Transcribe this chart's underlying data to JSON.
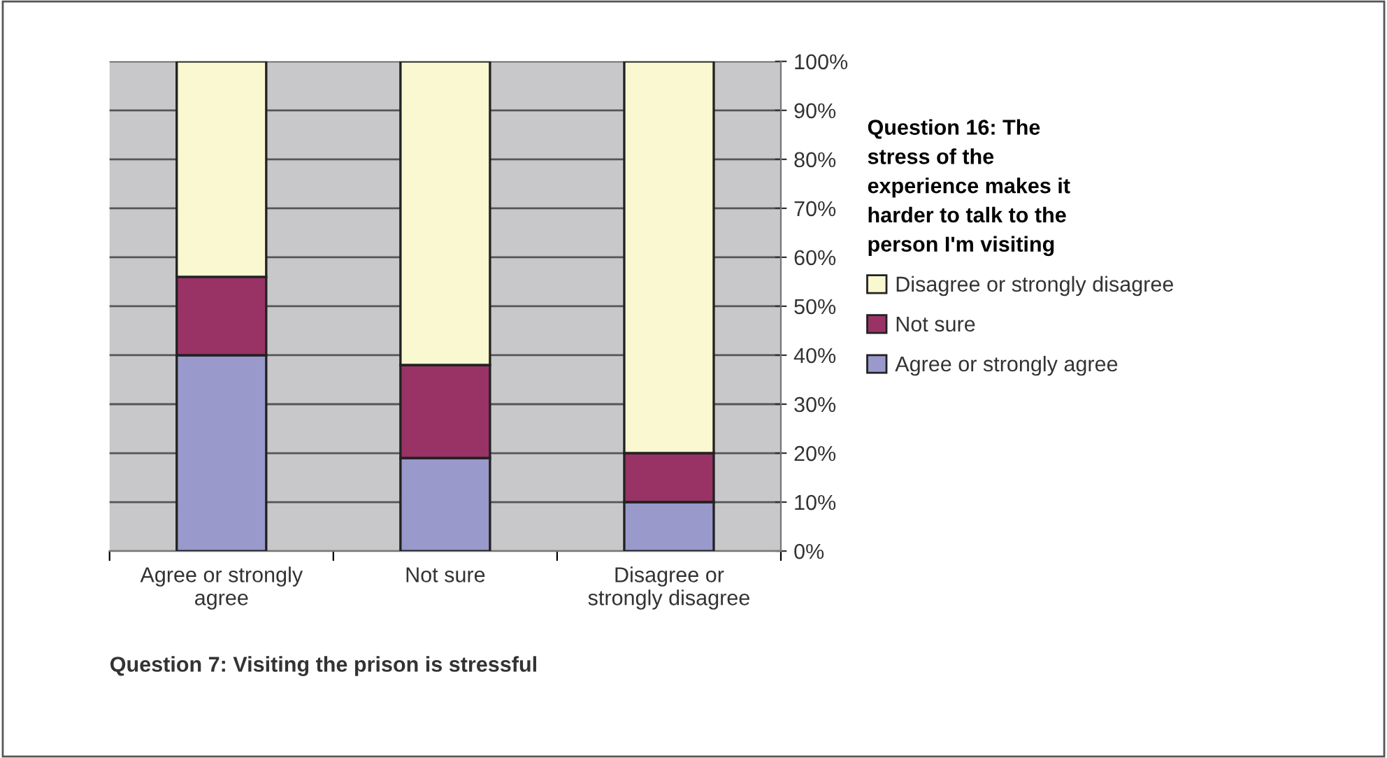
{
  "chart_data": {
    "type": "bar",
    "stacked": true,
    "categories": [
      "Agree or strongly\nagree",
      "Not sure",
      "Disagree or\nstrongly disagree"
    ],
    "series": [
      {
        "name": "Agree or strongly agree",
        "color": "#9999cc",
        "values": [
          40,
          19,
          10
        ]
      },
      {
        "name": "Not sure",
        "color": "#993366",
        "values": [
          16,
          19,
          10
        ]
      },
      {
        "name": "Disagree or strongly disagree",
        "color": "#faf8d0",
        "values": [
          44,
          62,
          80
        ]
      }
    ],
    "ylim": [
      0,
      100
    ],
    "yticks": [
      {
        "value": 0,
        "label": "0%"
      },
      {
        "value": 10,
        "label": "10%"
      },
      {
        "value": 20,
        "label": "20%"
      },
      {
        "value": 30,
        "label": "30%"
      },
      {
        "value": 40,
        "label": "40%"
      },
      {
        "value": 50,
        "label": "50%"
      },
      {
        "value": 60,
        "label": "60%"
      },
      {
        "value": 70,
        "label": "70%"
      },
      {
        "value": 80,
        "label": "80%"
      },
      {
        "value": 90,
        "label": "90%"
      },
      {
        "value": 100,
        "label": "100%"
      }
    ],
    "grid": "y",
    "legend": "right",
    "legend_title": "Question 16: The\nstress of the\nexperience makes it\nharder to talk to the\nperson I'm visiting",
    "xlabel": "Question 7: Visiting the prison is stressful"
  }
}
